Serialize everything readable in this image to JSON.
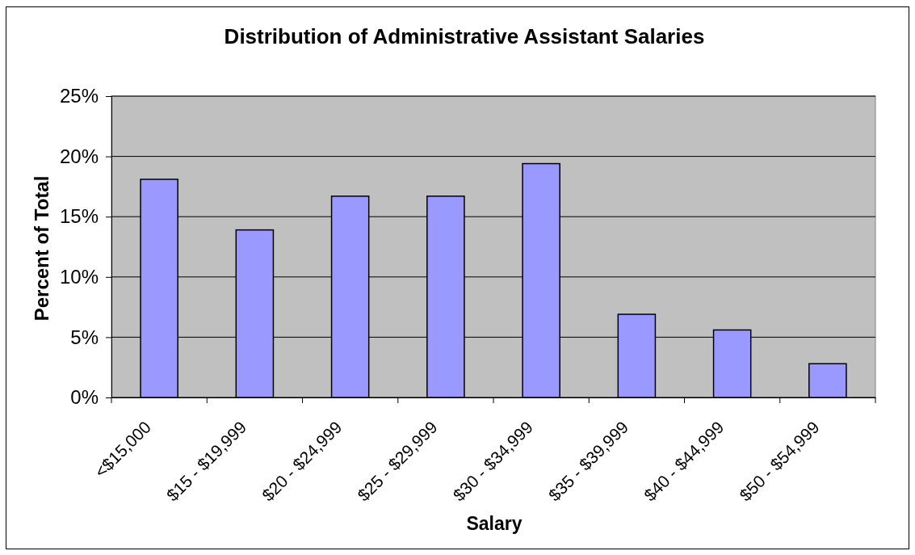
{
  "chart_data": {
    "type": "bar",
    "title": "Distribution of Administrative Assistant Salaries",
    "xlabel": "Salary",
    "ylabel": "Percent of Total",
    "categories": [
      "<$15,000",
      "$15 - $19,999",
      "$20 - $24,999",
      "$25 - $29,999",
      "$30 - $34,999",
      "$35 - $39,999",
      "$40 - $44,999",
      "$50 - $54,999"
    ],
    "values": [
      18.1,
      13.9,
      16.7,
      16.7,
      19.4,
      6.9,
      5.6,
      2.8
    ],
    "color": "#9999ff",
    "ylim": [
      0,
      25
    ],
    "yticks": [
      {
        "value": 0,
        "label": "0%"
      },
      {
        "value": 5,
        "label": "5%"
      },
      {
        "value": 10,
        "label": "10%"
      },
      {
        "value": 15,
        "label": "15%"
      },
      {
        "value": 20,
        "label": "20%"
      },
      {
        "value": 25,
        "label": "25%"
      }
    ],
    "grid": "y"
  }
}
